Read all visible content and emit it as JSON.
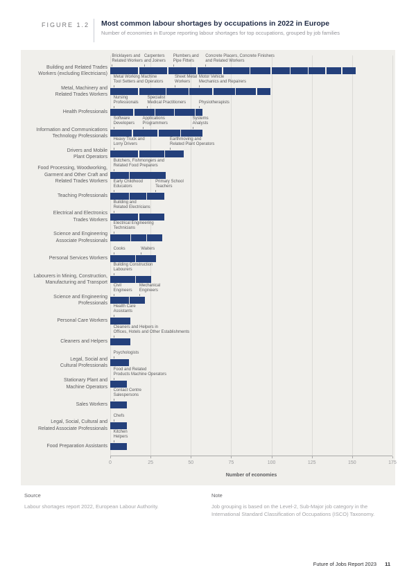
{
  "figure": {
    "label": "FIGURE 1.2",
    "title": "Most common labour shortages by occupations in 2022 in Europe",
    "subtitle": "Number of economies in Europe reporting labour shortages for top occupations, grouped by job families"
  },
  "chart_data": {
    "type": "bar",
    "orientation": "horizontal-stacked",
    "xlabel": "Number of economies",
    "xlim": [
      0,
      175
    ],
    "xticks": [
      0,
      25,
      50,
      75,
      100,
      125,
      150,
      175
    ],
    "bar_color": "#24407b",
    "grid": true,
    "rows": [
      {
        "category": "Building and Related Trades\nWorkers (excluding Electricians)",
        "total": 153,
        "segments": [
          18,
          18,
          18,
          16,
          17,
          13,
          12,
          11,
          11,
          10,
          9
        ],
        "labels": [
          {
            "text": "Bricklayers and\nRelated Workers",
            "x": 1
          },
          {
            "text": "Carpenters\nand Joiners",
            "x": 21
          },
          {
            "text": "Plumbers and\nPipe Fitters",
            "x": 39
          },
          {
            "text": "Concrete Placers, Concrete Finishers\nand Related Workers",
            "x": 59
          }
        ]
      },
      {
        "category": "Metal, Machinery and\nRelated Trades Workers",
        "total": 100,
        "segments": [
          18,
          17,
          14,
          15,
          14,
          13,
          9
        ],
        "labels": [
          {
            "text": "Metal Working Machine\nTool Setters and Operators",
            "x": 2
          },
          {
            "text": "Sheet Metal\nWorkers",
            "x": 40
          },
          {
            "text": "Motor Vehicle\nMechanics and Repairers",
            "x": 55
          }
        ]
      },
      {
        "category": "Health Professionals",
        "total": 58,
        "segments": [
          15,
          13,
          12,
          13,
          5
        ],
        "labels": [
          {
            "text": "Nursing\nProfessionals",
            "x": 2
          },
          {
            "text": "Specialist\nMedical Practitioners",
            "x": 23
          },
          {
            "text": "Physiotherapists",
            "x": 55
          }
        ]
      },
      {
        "category": "Information and Communications\nTechnology Professionals",
        "total": 58,
        "segments": [
          14,
          16,
          14,
          14
        ],
        "labels": [
          {
            "text": "Software\nDevelopers",
            "x": 2
          },
          {
            "text": "Applications\nProgrammers",
            "x": 20
          },
          {
            "text": "Systems\nAnalysts",
            "x": 51
          }
        ]
      },
      {
        "category": "Drivers and Mobile\nPlant Operators",
        "total": 46,
        "segments": [
          18,
          16,
          12
        ],
        "labels": [
          {
            "text": "Heavy Truck and\nLorry Drivers",
            "x": 2
          },
          {
            "text": "Earthmoving and\nRelated Plant Operators",
            "x": 37
          }
        ]
      },
      {
        "category": "Food Processing, Woodworking,\nGarment and Other Craft and\nRelated Trades Workers",
        "total": 35,
        "segments": [
          12,
          23
        ],
        "labels": [
          {
            "text": "Butchers, Fishmongers and\nRelated Food Preparers",
            "x": 2
          }
        ]
      },
      {
        "category": "Teaching Professionals",
        "total": 34,
        "segments": [
          12,
          11,
          11
        ],
        "labels": [
          {
            "text": "Early Childhood\nEducators",
            "x": 2
          },
          {
            "text": "Primary School\nTeachers",
            "x": 28
          }
        ]
      },
      {
        "category": "Electrical and Electronics\nTrades Workers",
        "total": 34,
        "segments": [
          18,
          16
        ],
        "labels": [
          {
            "text": "Building and\nRelated Electricians",
            "x": 2
          }
        ]
      },
      {
        "category": "Science and Engineering\nAssociate Professionals",
        "total": 33,
        "segments": [
          13,
          10,
          10
        ],
        "labels": [
          {
            "text": "Electrical Engineering\nTechnicians",
            "x": 2
          }
        ]
      },
      {
        "category": "Personal Services Workers",
        "total": 29,
        "segments": [
          16,
          13
        ],
        "labels": [
          {
            "text": "Cooks",
            "x": 2
          },
          {
            "text": "Waiters",
            "x": 19
          }
        ]
      },
      {
        "category": "Labourers in Mining, Construction,\nManufacturing and Transport",
        "total": 26,
        "segments": [
          16,
          10
        ],
        "labels": [
          {
            "text": "Building Construction\nLabourers",
            "x": 2
          }
        ]
      },
      {
        "category": "Science and Engineering\nProfessionals",
        "total": 22,
        "segments": [
          12,
          10
        ],
        "labels": [
          {
            "text": "Civil\nEngineers",
            "x": 2
          },
          {
            "text": "Mechanical\nEngineers",
            "x": 18
          }
        ]
      },
      {
        "category": "Personal Care Workers",
        "total": 13,
        "segments": [
          13
        ],
        "labels": [
          {
            "text": "Health Care\nAssistants",
            "x": 2
          }
        ]
      },
      {
        "category": "Cleaners and Helpers",
        "total": 13,
        "segments": [
          13
        ],
        "labels": [
          {
            "text": "Cleaners and Helpers in\nOffices, Hotels and Other Establishments",
            "x": 2
          }
        ]
      },
      {
        "category": "Legal, Social and\nCultural Professionals",
        "total": 12,
        "segments": [
          12
        ],
        "labels": [
          {
            "text": "Psychologists",
            "x": 2
          }
        ]
      },
      {
        "category": "Stationary Plant and\nMachine Operators",
        "total": 11,
        "segments": [
          11
        ],
        "labels": [
          {
            "text": "Food and Related\nProducts Machine Operators",
            "x": 2
          }
        ]
      },
      {
        "category": "Sales Workers",
        "total": 11,
        "segments": [
          11
        ],
        "labels": [
          {
            "text": "Contact Centre\nSalespersons",
            "x": 2
          }
        ]
      },
      {
        "category": "Legal, Social, Cultural and\nRelated Associate Professionals",
        "total": 11,
        "segments": [
          11
        ],
        "labels": [
          {
            "text": "Chefs",
            "x": 2
          }
        ]
      },
      {
        "category": "Food Preparation Assistants",
        "total": 11,
        "segments": [
          11
        ],
        "labels": [
          {
            "text": "Kitchen\nHelpers",
            "x": 2
          }
        ]
      }
    ]
  },
  "source": {
    "heading": "Source",
    "text": "Labour shortages report 2022, European Labour Authority."
  },
  "note": {
    "heading": "Note",
    "text": "Job grouping is based on the Level-2, Sub-Major job category in the International Standard Classification of Occupations (ISCO) Taxonomy."
  },
  "footer": {
    "report": "Future of Jobs Report 2023",
    "page": "11"
  }
}
